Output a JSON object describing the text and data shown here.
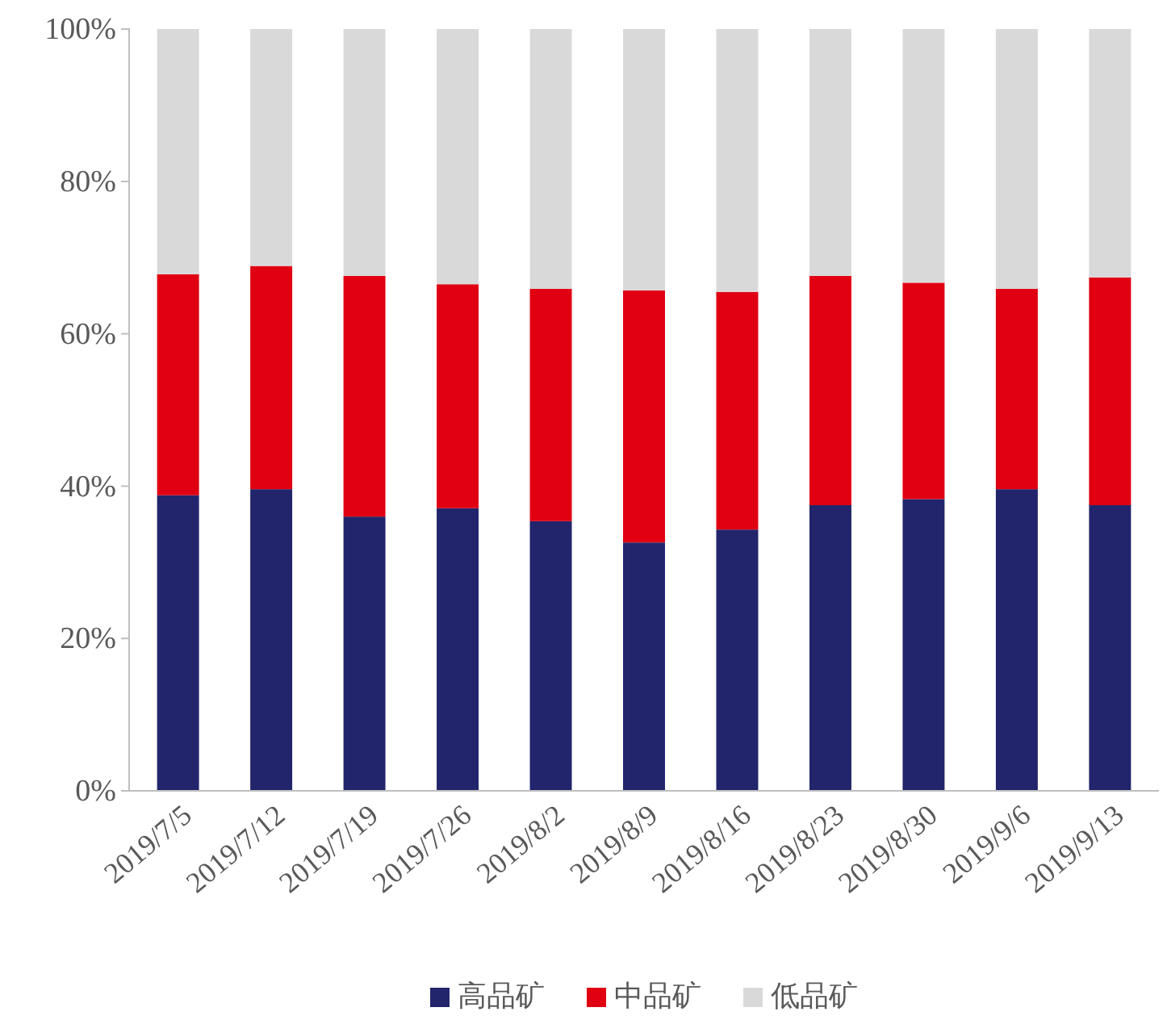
{
  "chart_data": {
    "type": "bar",
    "stacked": true,
    "categories": [
      "2019/7/5",
      "2019/7/12",
      "2019/7/19",
      "2019/7/26",
      "2019/8/2",
      "2019/8/9",
      "2019/8/16",
      "2019/8/23",
      "2019/8/30",
      "2019/9/6",
      "2019/9/13"
    ],
    "series": [
      {
        "name": "高品矿",
        "color": "#22256b",
        "values": [
          38.8,
          39.6,
          36.0,
          37.1,
          35.4,
          32.6,
          34.3,
          37.5,
          38.3,
          39.6,
          37.5
        ]
      },
      {
        "name": "中品矿",
        "color": "#e00012",
        "values": [
          29.0,
          29.3,
          31.6,
          29.4,
          30.5,
          33.1,
          31.2,
          30.1,
          28.4,
          26.3,
          29.9
        ]
      },
      {
        "name": "低品矿",
        "color": "#d9d9d9",
        "values": [
          32.2,
          31.1,
          32.4,
          33.5,
          34.1,
          34.3,
          34.5,
          32.4,
          33.3,
          34.1,
          32.6
        ]
      }
    ],
    "ylim": [
      0,
      100
    ],
    "yticks": [
      {
        "value": 0,
        "label": "0%"
      },
      {
        "value": 20,
        "label": "20%"
      },
      {
        "value": 40,
        "label": "40%"
      },
      {
        "value": 60,
        "label": "60%"
      },
      {
        "value": 80,
        "label": "80%"
      },
      {
        "value": 100,
        "label": "100%"
      }
    ],
    "grid": false,
    "legend": "bottom"
  }
}
